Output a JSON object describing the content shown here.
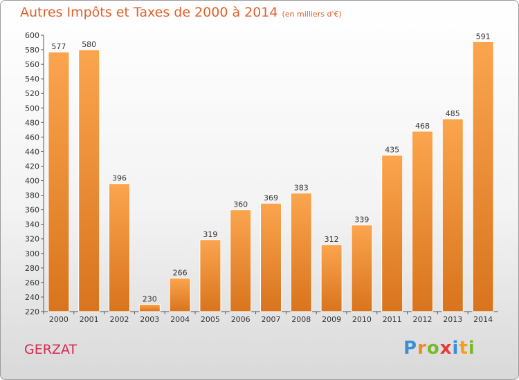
{
  "title": "Autres Impôts et Taxes de 2000 à 2014",
  "subtitle": "(en milliers d'€)",
  "city": "GERZAT",
  "logo": {
    "text": "Proxiti",
    "letters": [
      {
        "ch": "P",
        "color": "#3b8fd6"
      },
      {
        "ch": "r",
        "color": "#f08a1f"
      },
      {
        "ch": "o",
        "color": "#79b928"
      },
      {
        "ch": "x",
        "color": "#e53b3b"
      },
      {
        "ch": "i",
        "color": "#3b8fd6"
      },
      {
        "ch": "t",
        "color": "#f0a01f"
      },
      {
        "ch": "i",
        "color": "#79b928"
      }
    ]
  },
  "colors": {
    "bar_light": "#fba54e",
    "bar_dark": "#d8741d",
    "title": "#e0602a",
    "city": "#d5294f"
  },
  "chart_data": {
    "type": "bar",
    "categories": [
      "2000",
      "2001",
      "2002",
      "2003",
      "2004",
      "2005",
      "2006",
      "2007",
      "2008",
      "2009",
      "2010",
      "2011",
      "2012",
      "2013",
      "2014"
    ],
    "values": [
      577,
      580,
      396,
      230,
      266,
      319,
      360,
      369,
      383,
      312,
      339,
      435,
      468,
      485,
      591
    ],
    "title": "Autres Impôts et Taxes de 2000 à 2014",
    "xlabel": "",
    "ylabel": "",
    "ylim": [
      220,
      600
    ],
    "ytick_step": 20,
    "grid": false,
    "legend": "none"
  }
}
